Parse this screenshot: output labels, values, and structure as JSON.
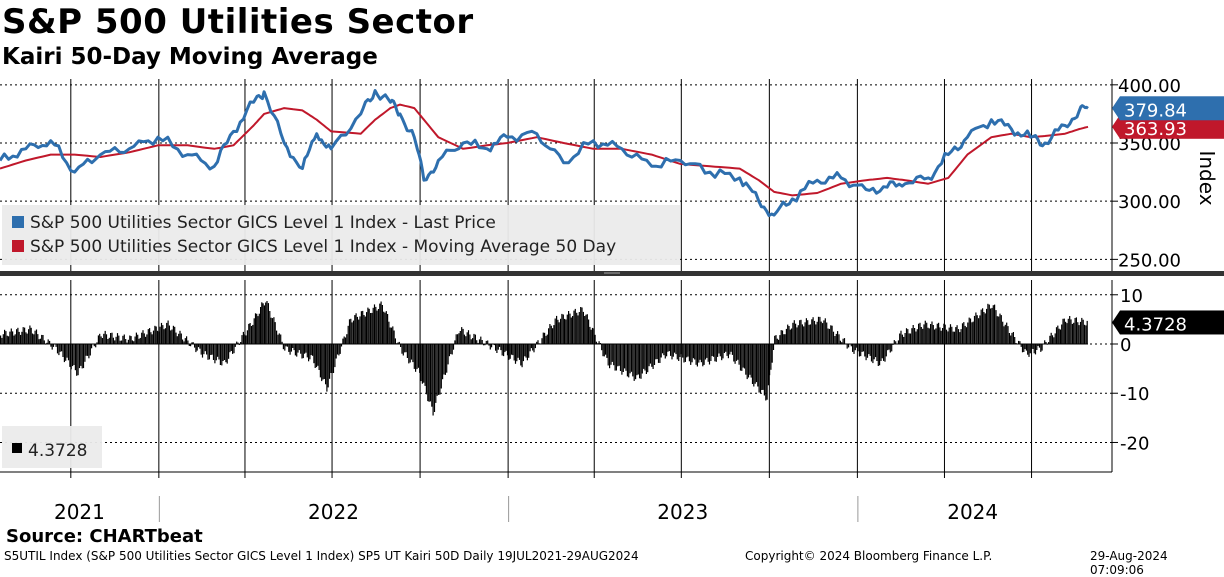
{
  "header": {
    "title": "S&P 500 Utilities Sector",
    "subtitle": "Kairi 50-Day Moving Average"
  },
  "source": "Source: CHARTbeat",
  "footer": {
    "left": "S5UTIL Index (S&P 500 Utilities Sector GICS Level 1 Index) SP5 UT Kairi 50D  Daily 19JUL2021-29AUG2024",
    "center": "Copyright© 2024 Bloomberg Finance L.P.",
    "right": "29-Aug-2024 07:09:06"
  },
  "colors": {
    "price": "#2e6fae",
    "moving_average": "#c0182b",
    "kairi": "#000000",
    "grid": "#000000",
    "divider": "#333333"
  },
  "chart_data": [
    {
      "type": "line",
      "ylabel": "Index",
      "ylim": [
        240,
        405
      ],
      "yticks": [
        "400.00",
        "350.00",
        "300.00",
        "250.00"
      ],
      "ytick_values": [
        400,
        350,
        300,
        250
      ],
      "years": [
        "2021",
        "2022",
        "2023",
        "2024"
      ],
      "last_values": {
        "price": "379.84",
        "moving_average": "363.93"
      },
      "legend": [
        "S&P 500 Utilities Sector GICS Level 1 Index - Last Price",
        "S&P 500 Utilities Sector GICS Level 1 Index - Moving Average 50 Day"
      ],
      "x": [
        "2021-07-19",
        "2021-08-15",
        "2021-09-10",
        "2021-10-05",
        "2021-11-01",
        "2021-12-01",
        "2021-12-31",
        "2022-01-31",
        "2022-02-28",
        "2022-03-20",
        "2022-04-10",
        "2022-04-21",
        "2022-05-12",
        "2022-05-31",
        "2022-06-15",
        "2022-06-30",
        "2022-07-31",
        "2022-08-15",
        "2022-08-31",
        "2022-09-10",
        "2022-09-25",
        "2022-10-05",
        "2022-10-20",
        "2022-11-15",
        "2022-12-10",
        "2022-12-31",
        "2023-01-31",
        "2023-02-28",
        "2023-03-31",
        "2023-04-30",
        "2023-05-31",
        "2023-06-30",
        "2023-07-31",
        "2023-08-31",
        "2023-09-20",
        "2023-10-06",
        "2023-10-25",
        "2023-11-20",
        "2023-12-15",
        "2024-01-10",
        "2024-02-01",
        "2024-02-20",
        "2024-03-15",
        "2024-04-05",
        "2024-04-25",
        "2024-05-20",
        "2024-06-10",
        "2024-06-30",
        "2024-07-15",
        "2024-08-05",
        "2024-08-20",
        "2024-08-29"
      ],
      "series": [
        {
          "name": "S&P 500 Utilities Sector GICS Level 1 Index - Last Price",
          "values": [
            335,
            345,
            352,
            325,
            340,
            345,
            355,
            340,
            330,
            360,
            385,
            394,
            350,
            328,
            358,
            345,
            375,
            395,
            385,
            375,
            355,
            318,
            335,
            350,
            345,
            355,
            358,
            333,
            352,
            345,
            330,
            335,
            325,
            320,
            300,
            288,
            302,
            318,
            320,
            310,
            312,
            315,
            320,
            340,
            355,
            370,
            362,
            355,
            350,
            365,
            378,
            379.84
          ]
        },
        {
          "name": "S&P 500 Utilities Sector GICS Level 1 Index - Moving Average 50 Day",
          "values": [
            328,
            335,
            340,
            340,
            338,
            342,
            348,
            348,
            345,
            348,
            365,
            375,
            380,
            378,
            370,
            360,
            358,
            370,
            380,
            383,
            380,
            370,
            355,
            345,
            348,
            350,
            355,
            350,
            345,
            345,
            340,
            332,
            330,
            328,
            318,
            308,
            305,
            307,
            315,
            318,
            320,
            318,
            315,
            320,
            340,
            355,
            358,
            355,
            356,
            358,
            362,
            363.93
          ]
        }
      ]
    },
    {
      "type": "bar",
      "ylim": [
        -26,
        13
      ],
      "yticks": [
        "10",
        "0",
        "-10",
        "-20"
      ],
      "ytick_values": [
        10,
        0,
        -10,
        -20
      ],
      "last_value": "4.3728",
      "legend": [
        "4.3728"
      ],
      "x": [
        "2021-07-19",
        "2021-08-20",
        "2021-09-15",
        "2021-10-08",
        "2021-11-01",
        "2021-12-01",
        "2022-01-10",
        "2022-02-15",
        "2022-03-10",
        "2022-04-10",
        "2022-04-22",
        "2022-05-12",
        "2022-06-10",
        "2022-06-25",
        "2022-07-20",
        "2022-08-22",
        "2022-09-10",
        "2022-09-30",
        "2022-10-14",
        "2022-11-10",
        "2022-12-10",
        "2023-01-15",
        "2023-02-20",
        "2023-03-20",
        "2023-04-15",
        "2023-05-15",
        "2023-06-15",
        "2023-07-20",
        "2023-08-20",
        "2023-09-10",
        "2023-09-28",
        "2023-10-06",
        "2023-10-25",
        "2023-11-25",
        "2023-12-25",
        "2024-01-25",
        "2024-02-15",
        "2024-03-10",
        "2024-04-15",
        "2024-05-20",
        "2024-06-10",
        "2024-06-25",
        "2024-07-10",
        "2024-08-05",
        "2024-08-29"
      ],
      "values": [
        2,
        3,
        -1,
        -6,
        2,
        1,
        4,
        -2,
        -4,
        5,
        9,
        -1,
        -3,
        -9,
        5,
        8,
        -1,
        -6,
        -14,
        3,
        0,
        -4,
        5,
        7,
        -4,
        -7,
        -2,
        -4,
        -2,
        -7,
        -11,
        1,
        4,
        5,
        -1,
        -4,
        2,
        4,
        3,
        8,
        2,
        -2,
        -1,
        5,
        4.3728
      ]
    }
  ]
}
